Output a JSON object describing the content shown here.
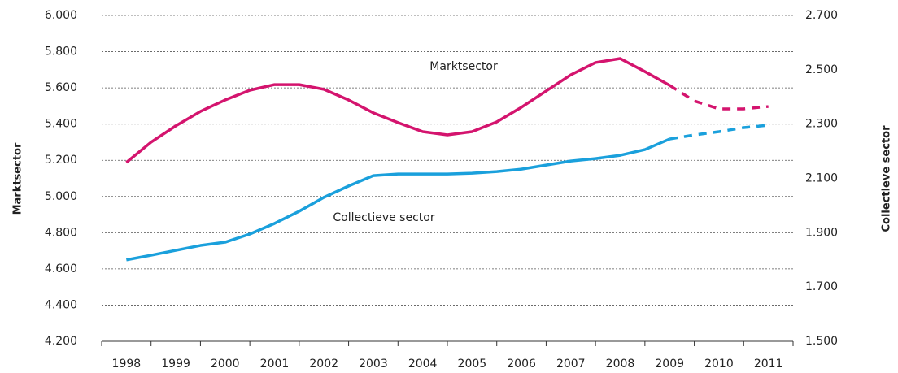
{
  "chart_data": {
    "type": "line",
    "y_label": "Marktsector",
    "y2_label": "Collectieve sector",
    "annotations": [
      "Marktsector",
      "Collectieve sector"
    ],
    "x": [
      1998,
      1998.5,
      1999,
      1999.5,
      2000,
      2000.5,
      2001,
      2001.5,
      2002,
      2002.5,
      2003,
      2003.5,
      2004,
      2004.5,
      2005,
      2005.5,
      2006,
      2006.5,
      2007,
      2007.5,
      2008,
      2008.5,
      2009,
      2009.5,
      2010,
      2010.5,
      2011
    ],
    "xlim": [
      1997.5,
      2011.5
    ],
    "xticks": [
      1998,
      1999,
      2000,
      2001,
      2002,
      2003,
      2004,
      2005,
      2006,
      2007,
      2008,
      2009,
      2010,
      2011
    ],
    "ylim": [
      4200,
      6000
    ],
    "yticks": [
      {
        "value": 4200,
        "label": "4.200"
      },
      {
        "value": 4400,
        "label": "4.400"
      },
      {
        "value": 4600,
        "label": "4.600"
      },
      {
        "value": 4800,
        "label": "4.800"
      },
      {
        "value": 5000,
        "label": "5.000"
      },
      {
        "value": 5200,
        "label": "5.200"
      },
      {
        "value": 5400,
        "label": "5.400"
      },
      {
        "value": 5600,
        "label": "5.600"
      },
      {
        "value": 5800,
        "label": "5.800"
      },
      {
        "value": 6000,
        "label": "6.000"
      }
    ],
    "y2lim": [
      1500,
      2700
    ],
    "y2ticks": [
      {
        "value": 1500,
        "label": "1.500"
      },
      {
        "value": 1700,
        "label": "1.700"
      },
      {
        "value": 1900,
        "label": "1.900"
      },
      {
        "value": 2100,
        "label": "2.100"
      },
      {
        "value": 2300,
        "label": "2.300"
      },
      {
        "value": 2500,
        "label": "2.500"
      },
      {
        "value": 2700,
        "label": "2.700"
      }
    ],
    "grid": true,
    "series": [
      {
        "color": "#d4146e",
        "style": "solid",
        "values": [
          5188,
          5300,
          5390,
          5470,
          5533,
          5587,
          5618,
          5618,
          5592,
          5533,
          5462,
          5408,
          5358,
          5340,
          5358,
          5412,
          5493,
          5583,
          5672,
          5740,
          5762,
          5690,
          5614,
          null,
          null,
          null,
          null
        ]
      },
      {
        "color": "#d4146e",
        "style": "dashed",
        "values": [
          null,
          null,
          null,
          null,
          null,
          null,
          null,
          null,
          null,
          null,
          null,
          null,
          null,
          null,
          null,
          null,
          null,
          null,
          null,
          null,
          null,
          null,
          5614,
          5528,
          5484,
          5484,
          5497
        ]
      },
      {
        "color": "#1aa0dc",
        "style": "solid",
        "axis": "y2",
        "values": [
          1800,
          1817,
          1835,
          1853,
          1865,
          1895,
          1934,
          1979,
          2030,
          2072,
          2110,
          2116,
          2116,
          2116,
          2119,
          2125,
          2134,
          2149,
          2164,
          2173,
          2185,
          2206,
          2245,
          null,
          null,
          null,
          null
        ]
      },
      {
        "color": "#1aa0dc",
        "style": "dashed",
        "axis": "y2",
        "values": [
          null,
          null,
          null,
          null,
          null,
          null,
          null,
          null,
          null,
          null,
          null,
          null,
          null,
          null,
          null,
          null,
          null,
          null,
          null,
          null,
          null,
          null,
          2245,
          2260,
          2272,
          2287,
          2296
        ]
      }
    ]
  }
}
